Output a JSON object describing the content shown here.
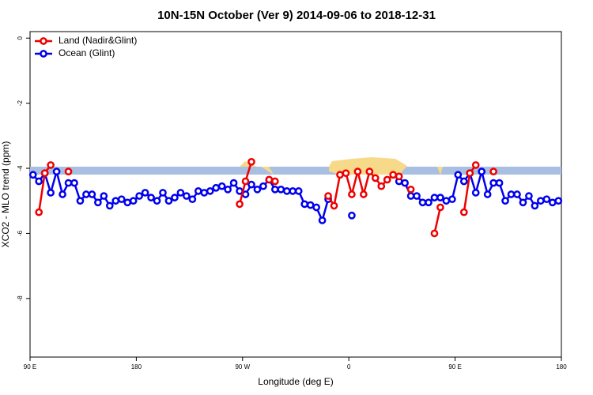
{
  "chart_data": {
    "type": "line",
    "title": "10N-15N October (Ver 9)   2014-09-06 to 2018-12-31",
    "xlabel": "Longitude (deg E)",
    "ylabel": "XCO2 - MLO trend (ppm)",
    "x": [
      92.5,
      97.5,
      102.5,
      107.5,
      112.5,
      117.5,
      122.5,
      127.5,
      132.5,
      137.5,
      142.5,
      147.5,
      152.5,
      157.5,
      162.5,
      167.5,
      172.5,
      177.5,
      182.5,
      187.5,
      192.5,
      197.5,
      202.5,
      207.5,
      212.5,
      217.5,
      222.5,
      227.5,
      232.5,
      237.5,
      242.5,
      247.5,
      252.5,
      257.5,
      262.5,
      267.5,
      272.5,
      277.5,
      282.5,
      287.5,
      292.5,
      297.5,
      302.5,
      307.5,
      312.5,
      317.5,
      322.5,
      327.5,
      332.5,
      337.5,
      342.5,
      347.5,
      352.5,
      357.5,
      362.5,
      367.5,
      372.5,
      377.5,
      382.5,
      387.5,
      392.5,
      397.5,
      402.5,
      407.5,
      412.5,
      417.5,
      422.5,
      427.5,
      432.5,
      437.5,
      442.5,
      447.5,
      452.5,
      457.5,
      462.5,
      467.5,
      472.5,
      477.5,
      482.5,
      487.5,
      492.5,
      497.5,
      502.5,
      507.5,
      512.5,
      517.5,
      522.5,
      527.5,
      532.5,
      537.5
    ],
    "xlim": [
      90,
      540
    ],
    "xticks": [
      {
        "value": 90,
        "label": "90 E"
      },
      180,
      {
        "value": 270,
        "label": "90 W"
      },
      {
        "value": 360,
        "label": "0"
      },
      {
        "value": 450,
        "label": "90 E"
      },
      {
        "value": 540,
        "label": "180"
      }
    ],
    "ylim": [
      -9.8,
      0.2
    ],
    "yticks": [
      0,
      -2,
      -4,
      -6,
      -8
    ],
    "legend": "top-left",
    "series": [
      {
        "name": "Land (Nadir&Glint)",
        "color": "#ee0000",
        "values": [
          null,
          -5.35,
          -4.15,
          -3.9,
          null,
          null,
          -4.1,
          null,
          null,
          null,
          null,
          null,
          null,
          null,
          null,
          null,
          null,
          null,
          null,
          null,
          null,
          null,
          null,
          null,
          null,
          null,
          null,
          null,
          null,
          null,
          null,
          null,
          null,
          null,
          null,
          -5.1,
          -4.4,
          -3.8,
          null,
          null,
          -4.35,
          -4.4,
          null,
          null,
          null,
          null,
          null,
          null,
          null,
          null,
          -4.85,
          -5.15,
          -4.2,
          -4.15,
          -4.8,
          -4.1,
          -4.8,
          -4.1,
          -4.3,
          -4.55,
          -4.35,
          -4.2,
          -4.25,
          null,
          -4.65,
          null,
          null,
          null,
          -6.0,
          -5.2,
          null,
          null,
          null,
          -5.35,
          -4.15,
          -3.9,
          null,
          null,
          -4.1,
          null,
          null,
          null,
          null,
          null,
          null,
          null,
          null,
          null,
          null,
          null
        ]
      },
      {
        "name": "Ocean (Glint)",
        "color": "#0000ee",
        "values": [
          -4.2,
          -4.4,
          -4.15,
          -4.75,
          -4.1,
          -4.8,
          -4.45,
          -4.45,
          -5.0,
          -4.8,
          -4.8,
          -5.05,
          -4.85,
          -5.15,
          -5.0,
          -4.95,
          -5.05,
          -5.0,
          -4.85,
          -4.75,
          -4.9,
          -5.0,
          -4.75,
          -5.0,
          -4.9,
          -4.75,
          -4.85,
          -4.95,
          -4.7,
          -4.75,
          -4.7,
          -4.6,
          -4.55,
          -4.65,
          -4.45,
          -4.7,
          -4.8,
          -4.5,
          -4.65,
          -4.55,
          -4.35,
          -4.65,
          -4.65,
          -4.7,
          -4.7,
          -4.7,
          -5.1,
          -5.13,
          -5.2,
          -5.6,
          -4.95,
          null,
          null,
          null,
          -5.45,
          null,
          null,
          null,
          null,
          null,
          null,
          null,
          -4.4,
          -4.45,
          -4.85,
          -4.85,
          -5.05,
          -5.05,
          -4.9,
          -4.9,
          -5.0,
          -4.95,
          -4.2,
          -4.4,
          -4.15,
          -4.75,
          -4.1,
          -4.8,
          -4.45,
          -4.45,
          -5.0,
          -4.8,
          -4.8,
          -5.05,
          -4.85,
          -5.15,
          -5.0,
          -4.95,
          -5.05,
          -5.0
        ]
      }
    ]
  }
}
